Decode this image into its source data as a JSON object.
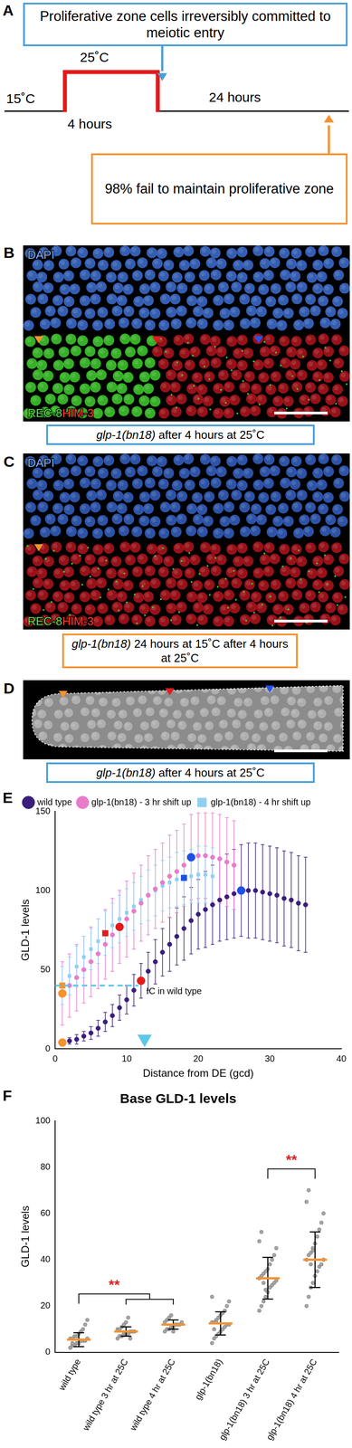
{
  "panels": {
    "A": {
      "letter": "A",
      "top_box": "Proliferative zone cells irreversibly committed to meiotic entry",
      "shift_temp": "25˚C",
      "base_temp": "15˚C",
      "shift_duration": "4 hours",
      "recovery_duration": "24 hours",
      "bottom_box": "98% fail to maintain proliferative zone"
    },
    "images": [
      {
        "letter": "B",
        "stain_top": "DAPI",
        "stain_bottom": [
          "REC-8",
          "HIM-3"
        ],
        "caption": {
          "italic": "glp-1(bn18)",
          "text": " after 4 hours at 25˚C",
          "color": "#4a9fd5"
        }
      },
      {
        "letter": "C",
        "stain_top": "DAPI",
        "stain_bottom": [
          "REC-8",
          "HIM-3"
        ],
        "caption": {
          "italic": "glp-1(bn18)",
          "text": " 24 hours at 15˚C after 4 hours at 25˚C",
          "color": "#f5922f"
        }
      },
      {
        "letter": "D",
        "caption": {
          "italic": "glp-1(bn18)",
          "text": " after 4 hours at 25˚C",
          "color": "#4a9fd5"
        }
      }
    ]
  },
  "chart_data": [
    {
      "type": "scatter",
      "letter": "E",
      "x_label": "Distance from DE (gcd)",
      "y_label": "GLD-1 levels",
      "xlim": [
        0,
        40
      ],
      "xticks": [
        0,
        10,
        20,
        30,
        40
      ],
      "ylim": [
        0,
        150
      ],
      "yticks": [
        0,
        50,
        100,
        150
      ],
      "grid": false,
      "legend": "top",
      "series": [
        {
          "name": "wild type",
          "color": "#3a1e7c",
          "marker": "circle",
          "x": [
            1,
            2,
            3,
            4,
            5,
            6,
            7,
            8,
            9,
            10,
            11,
            12,
            13,
            14,
            15,
            16,
            17,
            18,
            19,
            20,
            21,
            22,
            23,
            24,
            25,
            26,
            27,
            28,
            29,
            30,
            31,
            32,
            33,
            34,
            35
          ],
          "values": [
            4,
            5,
            6,
            8,
            10,
            13,
            17,
            21,
            26,
            31,
            37,
            43,
            49,
            55,
            61,
            66,
            71,
            76,
            81,
            85,
            88,
            91,
            94,
            96,
            98,
            100,
            100,
            100,
            99,
            98,
            97,
            95,
            94,
            92,
            91
          ],
          "errors": [
            2,
            2,
            3,
            3,
            4,
            5,
            6,
            7,
            8,
            9,
            10,
            11,
            12,
            14,
            15,
            17,
            18,
            20,
            21,
            22,
            24,
            25,
            26,
            27,
            28,
            29,
            30,
            30,
            30,
            30,
            30,
            30,
            30,
            30,
            30
          ],
          "colors": [
            "#f5922f",
            "#3a1e7c",
            "#3a1e7c",
            "#3a1e7c",
            "#3a1e7c",
            "#3a1e7c",
            "#3a1e7c",
            "#3a1e7c",
            "#3a1e7c",
            "#3a1e7c",
            "#3a1e7c",
            "#e31a1c",
            "#3a1e7c",
            "#3a1e7c",
            "#3a1e7c",
            "#3a1e7c",
            "#3a1e7c",
            "#3a1e7c",
            "#3a1e7c",
            "#3a1e7c",
            "#3a1e7c",
            "#3a1e7c",
            "#3a1e7c",
            "#3a1e7c",
            "#3a1e7c",
            "#1e50e6",
            "#3a1e7c",
            "#3a1e7c",
            "#3a1e7c",
            "#3a1e7c",
            "#3a1e7c",
            "#3a1e7c",
            "#3a1e7c",
            "#3a1e7c",
            "#3a1e7c"
          ]
        },
        {
          "name": "glp-1(bn18) - 3 hr shift up",
          "color": "#e87ccb",
          "marker": "circle",
          "x": [
            1,
            2,
            3,
            4,
            5,
            6,
            7,
            8,
            9,
            10,
            11,
            12,
            13,
            14,
            15,
            16,
            17,
            18,
            19,
            20,
            21,
            22,
            23,
            24,
            25
          ],
          "values": [
            35,
            40,
            45,
            50,
            55,
            60,
            66,
            72,
            77,
            82,
            87,
            92,
            97,
            101,
            105,
            109,
            112,
            116,
            121,
            122,
            122,
            121,
            120,
            118,
            116
          ],
          "errors": [
            20,
            20,
            21,
            21,
            22,
            22,
            22,
            23,
            23,
            24,
            24,
            24,
            25,
            25,
            25,
            26,
            26,
            26,
            27,
            27,
            27,
            28,
            28,
            28,
            28
          ],
          "colors": [
            "#f5922f",
            "#e87ccb",
            "#e87ccb",
            "#e87ccb",
            "#e87ccb",
            "#e87ccb",
            "#e87ccb",
            "#e87ccb",
            "#e31a1c",
            "#e87ccb",
            "#e87ccb",
            "#e87ccb",
            "#e87ccb",
            "#e87ccb",
            "#e87ccb",
            "#e87ccb",
            "#e87ccb",
            "#e87ccb",
            "#1e50e6",
            "#e87ccb",
            "#e87ccb",
            "#e87ccb",
            "#e87ccb",
            "#e87ccb",
            "#e87ccb"
          ]
        },
        {
          "name": "glp-1(bn18) - 4 hr shift up",
          "color": "#8fd0f2",
          "marker": "square",
          "x": [
            1,
            2,
            3,
            4,
            5,
            6,
            7,
            8,
            9,
            10,
            11,
            12,
            13,
            14,
            15,
            16,
            17,
            18,
            19,
            20,
            21,
            22
          ],
          "values": [
            40,
            46,
            52,
            58,
            63,
            68,
            73,
            78,
            82,
            86,
            90,
            94,
            97,
            100,
            103,
            105,
            107,
            108,
            109,
            110,
            110,
            109
          ],
          "errors": [
            12,
            12,
            13,
            13,
            13,
            14,
            14,
            14,
            15,
            15,
            15,
            15,
            16,
            16,
            16,
            16,
            17,
            17,
            17,
            18,
            18,
            18
          ],
          "colors": [
            "#f5922f",
            "#8fd0f2",
            "#8fd0f2",
            "#8fd0f2",
            "#8fd0f2",
            "#8fd0f2",
            "#e31a1c",
            "#8fd0f2",
            "#8fd0f2",
            "#8fd0f2",
            "#8fd0f2",
            "#8fd0f2",
            "#8fd0f2",
            "#8fd0f2",
            "#8fd0f2",
            "#8fd0f2",
            "#8fd0f2",
            "#1e50e6",
            "#8fd0f2",
            "#8fd0f2",
            "#8fd0f2",
            "#8fd0f2"
          ]
        }
      ],
      "reference": {
        "label": "IC in wild type",
        "x": 12.5,
        "y": 40,
        "color": "#5bc8e8",
        "line_style": "dashed"
      }
    },
    {
      "type": "dot",
      "letter": "F",
      "title": "Base GLD-1 levels",
      "y_label": "GLD-1 levels",
      "categories": [
        "wild type",
        "wild type 3 hr at 25C",
        "wild type 4 hr at 25C",
        "glp-1(bn18)",
        "glp-1(bn18) 3 hr at 25C",
        "glp-1(bn18) 4 hr at 25C"
      ],
      "ylim": [
        0,
        100
      ],
      "yticks": [
        0,
        20,
        40,
        60,
        80,
        100
      ],
      "grid": false,
      "points": [
        [
          2,
          3,
          3,
          4,
          4,
          5,
          5,
          5,
          6,
          6,
          6,
          7,
          7,
          8,
          9,
          10,
          12,
          14,
          2,
          4
        ],
        [
          6,
          7,
          7,
          8,
          8,
          8,
          9,
          9,
          9,
          10,
          10,
          11,
          12,
          13,
          15,
          6,
          9
        ],
        [
          9,
          10,
          10,
          11,
          11,
          12,
          12,
          12,
          13,
          13,
          14,
          15,
          16,
          9
        ],
        [
          4,
          6,
          7,
          8,
          9,
          10,
          11,
          12,
          12,
          13,
          13,
          14,
          15,
          16,
          17,
          18,
          20,
          22,
          24,
          10,
          13
        ],
        [
          18,
          20,
          22,
          24,
          26,
          28,
          29,
          30,
          31,
          32,
          33,
          34,
          35,
          36,
          38,
          40,
          42,
          45,
          48,
          52,
          30,
          27
        ],
        [
          20,
          24,
          28,
          30,
          33,
          35,
          37,
          38,
          40,
          40,
          42,
          43,
          45,
          47,
          50,
          53,
          56,
          60,
          65,
          70,
          38,
          44
        ]
      ],
      "means": [
        5.5,
        9,
        12,
        12.5,
        32,
        40
      ],
      "sd": [
        3,
        2,
        2,
        5,
        9,
        12
      ],
      "significance": [
        {
          "from": 0,
          "to": [
            1,
            2
          ],
          "label": "**",
          "color": "#e31a1c"
        },
        {
          "from": 4,
          "to": [
            5
          ],
          "label": "**",
          "color": "#e31a1c"
        }
      ]
    }
  ]
}
